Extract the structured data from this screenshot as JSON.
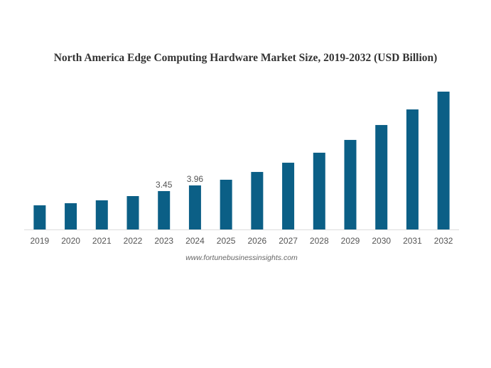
{
  "chart_data": {
    "type": "bar",
    "title": "North America Edge Computing Hardware Market Size, 2019-2032 (USD Billion)",
    "xlabel": "",
    "ylabel": "",
    "categories": [
      "2019",
      "2020",
      "2021",
      "2022",
      "2023",
      "2024",
      "2025",
      "2026",
      "2027",
      "2028",
      "2029",
      "2030",
      "2031",
      "2032"
    ],
    "values": [
      2.17,
      2.36,
      2.62,
      3.0,
      3.45,
      3.96,
      4.47,
      5.17,
      6.0,
      6.9,
      8.05,
      9.39,
      10.79,
      12.39
    ],
    "data_labels": {
      "2023": "3.45",
      "2024": "3.96"
    },
    "ylim": [
      0,
      12.6
    ],
    "grid": false,
    "legend": "none",
    "bar_color": "#0b5f86",
    "source": "www.fortunebusinessinsights.com"
  }
}
